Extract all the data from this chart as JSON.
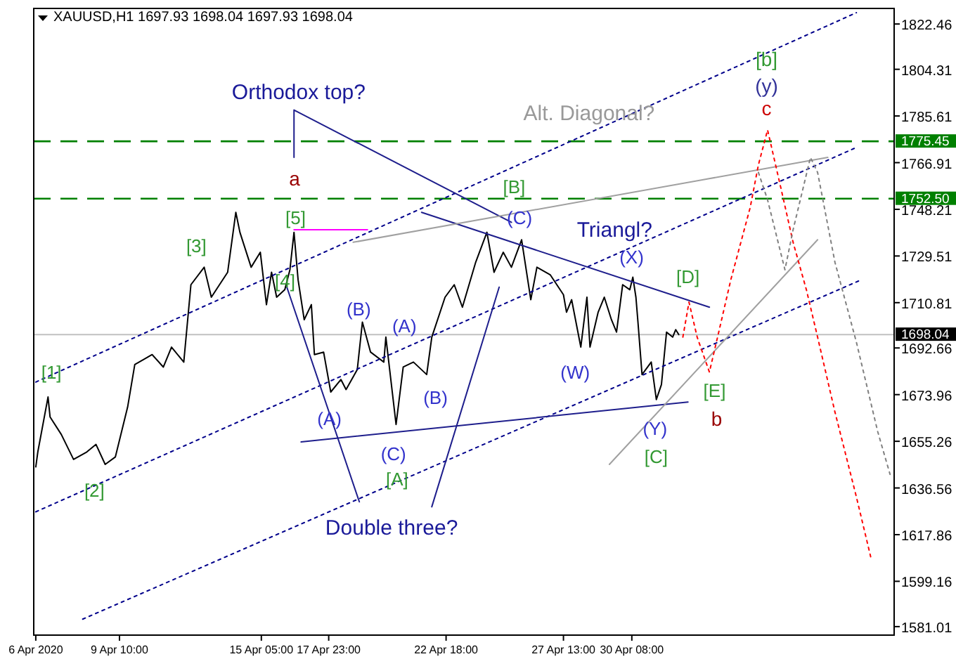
{
  "chart_data": {
    "type": "line",
    "title": "XAUUSD,H1  1697.93 1698.04 1697.93 1698.04",
    "xlim": [
      "2020-04-05T22:00",
      "2020-05-11T01:00"
    ],
    "xticks": [
      {
        "value": "2020-04-06T00:00",
        "label": "6 Apr 2020"
      },
      {
        "value": "2020-04-09T10:00",
        "label": "9 Apr 10:00"
      },
      {
        "value": "2020-04-15T05:00",
        "label": "15 Apr 05:00"
      },
      {
        "value": "2020-04-17T23:00",
        "label": "17 Apr 23:00"
      },
      {
        "value": "2020-04-22T18:00",
        "label": "22 Apr 18:00"
      },
      {
        "value": "2020-04-27T13:00",
        "label": "27 Apr 13:00"
      },
      {
        "value": "2020-04-30T08:00",
        "label": "30 Apr 08:00"
      }
    ],
    "ylim": [
      1577.6,
      1828.7
    ],
    "yticks": [
      1822.46,
      1804.31,
      1785.61,
      1766.91,
      1748.21,
      1729.51,
      1710.81,
      1692.66,
      1673.96,
      1655.26,
      1636.56,
      1617.86,
      1599.16,
      1581.01
    ],
    "grid": false,
    "marker": "none",
    "series": [
      {
        "color": "#000000",
        "line_style": "solid",
        "x": [
          "2020-04-06T00:00",
          "2020-04-06T02:00",
          "2020-04-06T12:00",
          "2020-04-06T14:00",
          "2020-04-07T01:00",
          "2020-04-07T13:00",
          "2020-04-08T02:00",
          "2020-04-08T11:00",
          "2020-04-08T20:00",
          "2020-04-09T06:00",
          "2020-04-09T18:00",
          "2020-04-10T01:00",
          "2020-04-10T18:00",
          "2020-04-11T05:00",
          "2020-04-11T13:00",
          "2020-04-12T01:00",
          "2020-04-12T08:00",
          "2020-04-12T21:00",
          "2020-04-13T04:00",
          "2020-04-13T20:00",
          "2020-04-14T04:00",
          "2020-04-14T08:00",
          "2020-04-14T19:00",
          "2020-04-15T04:00",
          "2020-04-15T10:00",
          "2020-04-15T15:00",
          "2020-04-15T20:00",
          "2020-04-16T04:00",
          "2020-04-16T09:00",
          "2020-04-16T13:00",
          "2020-04-16T17:00",
          "2020-04-16T23:00",
          "2020-04-17T06:00",
          "2020-04-17T09:00",
          "2020-04-17T18:00",
          "2020-04-18T01:00",
          "2020-04-18T11:00",
          "2020-04-18T16:00",
          "2020-04-19T03:00",
          "2020-04-19T08:00",
          "2020-04-19T16:00",
          "2020-04-20T05:00",
          "2020-04-20T07:00",
          "2020-04-20T17:00",
          "2020-04-21T00:00",
          "2020-04-21T10:00",
          "2020-04-21T23:00",
          "2020-04-22T04:00",
          "2020-04-22T17:00",
          "2020-04-23T02:00",
          "2020-04-23T10:00",
          "2020-04-23T23:00",
          "2020-04-24T10:00",
          "2020-04-24T17:00",
          "2020-04-25T02:00",
          "2020-04-25T10:00",
          "2020-04-25T20:00",
          "2020-04-26T05:00",
          "2020-04-26T11:00",
          "2020-04-27T00:00",
          "2020-04-27T13:00",
          "2020-04-27T16:00",
          "2020-04-27T21:00",
          "2020-04-28T06:00",
          "2020-04-28T12:00",
          "2020-04-28T15:00",
          "2020-04-28T23:00",
          "2020-04-29T05:00",
          "2020-04-29T12:00",
          "2020-04-29T17:00",
          "2020-04-29T23:00",
          "2020-04-30T06:00",
          "2020-04-30T09:00",
          "2020-04-30T12:00",
          "2020-04-30T14:00",
          "2020-04-30T18:00",
          "2020-05-01T03:00",
          "2020-05-01T08:00",
          "2020-05-01T13:00",
          "2020-05-01T18:00",
          "2020-05-02T00:00",
          "2020-05-02T03:00",
          "2020-05-02T06:00"
        ],
        "values": [
          1645,
          1651,
          1673,
          1665,
          1658,
          1648,
          1651,
          1654,
          1646,
          1649,
          1669,
          1686,
          1690,
          1685,
          1693,
          1687,
          1718,
          1725,
          1713,
          1723,
          1747,
          1739,
          1725,
          1731,
          1710,
          1723,
          1713,
          1716,
          1724,
          1739,
          1720,
          1704,
          1710,
          1690,
          1691,
          1675,
          1680,
          1676,
          1684,
          1703,
          1691,
          1687,
          1697,
          1662,
          1685,
          1687,
          1682,
          1697,
          1713,
          1718,
          1709,
          1727,
          1739,
          1723,
          1731,
          1725,
          1736,
          1712,
          1725,
          1722,
          1714,
          1707,
          1712,
          1693,
          1713,
          1693,
          1707,
          1713,
          1704,
          1699,
          1718,
          1716,
          1721,
          1713,
          1703,
          1682,
          1687,
          1672,
          1678,
          1699,
          1697,
          1700,
          1698
        ]
      },
      {
        "color": "#00008b",
        "line_style": "dotted",
        "x": [
          "2020-04-06T00:00",
          "2020-05-09T12:00"
        ],
        "values": [
          1679,
          1827
        ]
      },
      {
        "color": "#00008b",
        "line_style": "dotted",
        "x": [
          "2020-04-06T00:00",
          "2020-05-09T12:00"
        ],
        "values": [
          1627,
          1773
        ]
      },
      {
        "color": "#00008b",
        "line_style": "dotted",
        "x": [
          "2020-04-07T22:00",
          "2020-05-09T17:00"
        ],
        "values": [
          1584,
          1720
        ]
      },
      {
        "color": "#1e1e8c",
        "line_style": "solid",
        "x": [
          "2020-04-16T13:00",
          "2020-04-16T13:00",
          "2020-04-25T10:00"
        ],
        "values": [
          1769,
          1788,
          1743
        ]
      },
      {
        "color": "#1e1e8c",
        "line_style": "solid",
        "x": [
          "2020-04-21T18:00",
          "2020-05-03T12:00"
        ],
        "values": [
          1747,
          1709
        ]
      },
      {
        "color": "#1e1e8c",
        "line_style": "solid",
        "x": [
          "2020-04-16T20:00",
          "2020-05-02T15:00"
        ],
        "values": [
          1655,
          1671
        ]
      },
      {
        "color": "#1e1e8c",
        "line_style": "solid",
        "x": [
          "2020-04-16T06:00",
          "2020-04-19T05:00"
        ],
        "values": [
          1717,
          1631
        ]
      },
      {
        "color": "#1e1e8c",
        "line_style": "solid",
        "x": [
          "2020-04-22T04:00",
          "2020-04-24T22:00"
        ],
        "values": [
          1629,
          1717
        ]
      },
      {
        "color": "#a0a0a0",
        "line_style": "solid",
        "x": [
          "2020-04-18T23:00",
          "2020-05-08T08:00"
        ],
        "values": [
          1735,
          1769
        ]
      },
      {
        "color": "#a0a0a0",
        "line_style": "solid",
        "x": [
          "2020-04-29T10:00",
          "2020-05-07T22:00"
        ],
        "values": [
          1646,
          1736
        ]
      },
      {
        "color": "#ff00ff",
        "line_style": "solid",
        "x": [
          "2020-04-16T13:00",
          "2020-04-19T13:00"
        ],
        "values": [
          1740,
          1740
        ]
      },
      {
        "color": "#ff0000",
        "line_style": "dotted",
        "x": [
          "2020-05-02T10:00",
          "2020-05-02T16:00",
          "2020-05-03T00:00",
          "2020-05-03T12:00",
          "2020-05-03T20:00",
          "2020-05-04T09:00",
          "2020-05-05T04:00",
          "2020-05-05T12:00",
          "2020-05-05T21:00",
          "2020-05-06T11:00",
          "2020-05-06T22:00",
          "2020-05-07T11:00",
          "2020-05-07T22:00",
          "2020-05-08T15:00",
          "2020-05-09T12:00",
          "2020-05-10T02:00"
        ],
        "values": [
          1697,
          1711,
          1697,
          1683,
          1697,
          1720,
          1749,
          1766,
          1780,
          1755,
          1735,
          1716,
          1697,
          1667,
          1633,
          1609
        ]
      },
      {
        "color": "#808080",
        "line_style": "dotted",
        "x": [
          "2020-05-05T12:00",
          "2020-05-05T21:00",
          "2020-05-06T14:00",
          "2020-05-06T22:00",
          "2020-05-07T15:00",
          "2020-05-07T22:00",
          "2020-05-08T15:00",
          "2020-05-09T12:00",
          "2020-05-10T09:00",
          "2020-05-10T21:00"
        ],
        "values": [
          1763,
          1752,
          1724,
          1740,
          1769,
          1763,
          1727,
          1695,
          1659,
          1642
        ]
      }
    ],
    "ref_lines": [
      {
        "axis": "y",
        "value": 1775.45,
        "label": "1775.45",
        "color": "#008000",
        "line_style": "dashed"
      },
      {
        "axis": "y",
        "value": 1752.5,
        "label": "1752.50",
        "color": "#008000",
        "line_style": "dashed"
      },
      {
        "axis": "y",
        "value": 1698.04,
        "label": "1698.04",
        "color": "#c0c0c0",
        "line_style": "solid"
      }
    ],
    "annotations": [
      "Orthodox top?",
      "a",
      "[5]",
      "[3]",
      "[4]",
      "[1]",
      "[2]",
      "(B)",
      "(A)",
      "(A)",
      "(B)",
      "(C)",
      "[A]",
      "Double three?",
      "[B]",
      "(C)",
      "Triangl?",
      "(X)",
      "(W)",
      "(Y)",
      "[C]",
      "[D]",
      "[E]",
      "b",
      "Alt. Diagonal?",
      "[b]",
      "(y)",
      "c"
    ]
  }
}
